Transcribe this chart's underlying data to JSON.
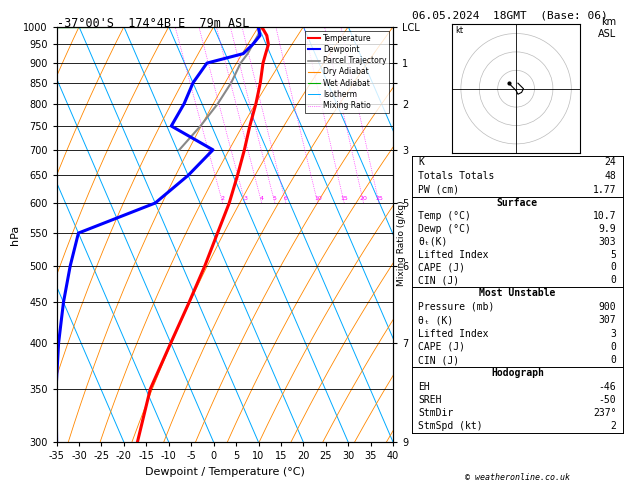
{
  "title_left": "-37°00'S  174°4B'E  79m ASL",
  "title_right": "06.05.2024  18GMT  (Base: 06)",
  "xlabel": "Dewpoint / Temperature (°C)",
  "ylabel_left": "hPa",
  "p_levels": [
    300,
    350,
    400,
    450,
    500,
    550,
    600,
    650,
    700,
    750,
    800,
    850,
    900,
    950,
    1000
  ],
  "temp_xlim": [
    -35,
    40
  ],
  "skew": 40.0,
  "temp_profile": {
    "pressure": [
      1000,
      975,
      950,
      925,
      900,
      850,
      800,
      750,
      700,
      650,
      600,
      550,
      500,
      450,
      400,
      350,
      300
    ],
    "temperature": [
      10.7,
      11.0,
      10.5,
      9.0,
      7.5,
      5.0,
      2.0,
      -1.5,
      -5.0,
      -9.0,
      -13.5,
      -19.0,
      -25.0,
      -32.0,
      -40.0,
      -49.0,
      -57.0
    ]
  },
  "dewpoint_profile": {
    "pressure": [
      1000,
      975,
      950,
      925,
      900,
      850,
      800,
      750,
      700,
      650,
      600,
      550,
      500,
      450,
      400,
      350,
      300
    ],
    "temperature": [
      9.9,
      9.5,
      7.0,
      4.0,
      -5.0,
      -10.0,
      -14.0,
      -19.0,
      -12.0,
      -20.0,
      -30.0,
      -50.0,
      -55.0,
      -60.0,
      -65.0,
      -70.0,
      -75.0
    ]
  },
  "parcel_profile": {
    "pressure": [
      1000,
      975,
      950,
      925,
      900,
      850,
      800,
      750,
      700
    ],
    "temperature": [
      10.7,
      9.0,
      7.0,
      5.0,
      2.5,
      -1.5,
      -6.5,
      -12.5,
      -19.5
    ]
  },
  "km_pressures": [
    300,
    400,
    500,
    600,
    700,
    800,
    850,
    900,
    950,
    1000
  ],
  "km_labels": [
    "9",
    "7",
    "6",
    "5",
    "3",
    "2",
    "",
    "1",
    "",
    "LCL"
  ],
  "mix_ratio_values": [
    2,
    3,
    4,
    5,
    6,
    10,
    15,
    20,
    25
  ],
  "surface_temp": 10.7,
  "surface_dewp": 9.9,
  "surface_theta_e": 303,
  "surface_lifted": 5,
  "surface_cape": 0,
  "surface_cin": 0,
  "mu_pressure": 900,
  "mu_theta_e": 307,
  "mu_lifted": 3,
  "mu_cape": 0,
  "mu_cin": 0,
  "K": 24,
  "TT": 48,
  "PW": 1.77,
  "EH": -46,
  "SREH": -50,
  "StmDir": 237,
  "StmSpd": 2,
  "col_temp": "#ff0000",
  "col_dewp": "#0000ff",
  "col_parcel": "#888888",
  "col_dry": "#ff8800",
  "col_wet": "#00aa00",
  "col_iso": "#00aaff",
  "col_mix": "#ff00ff"
}
